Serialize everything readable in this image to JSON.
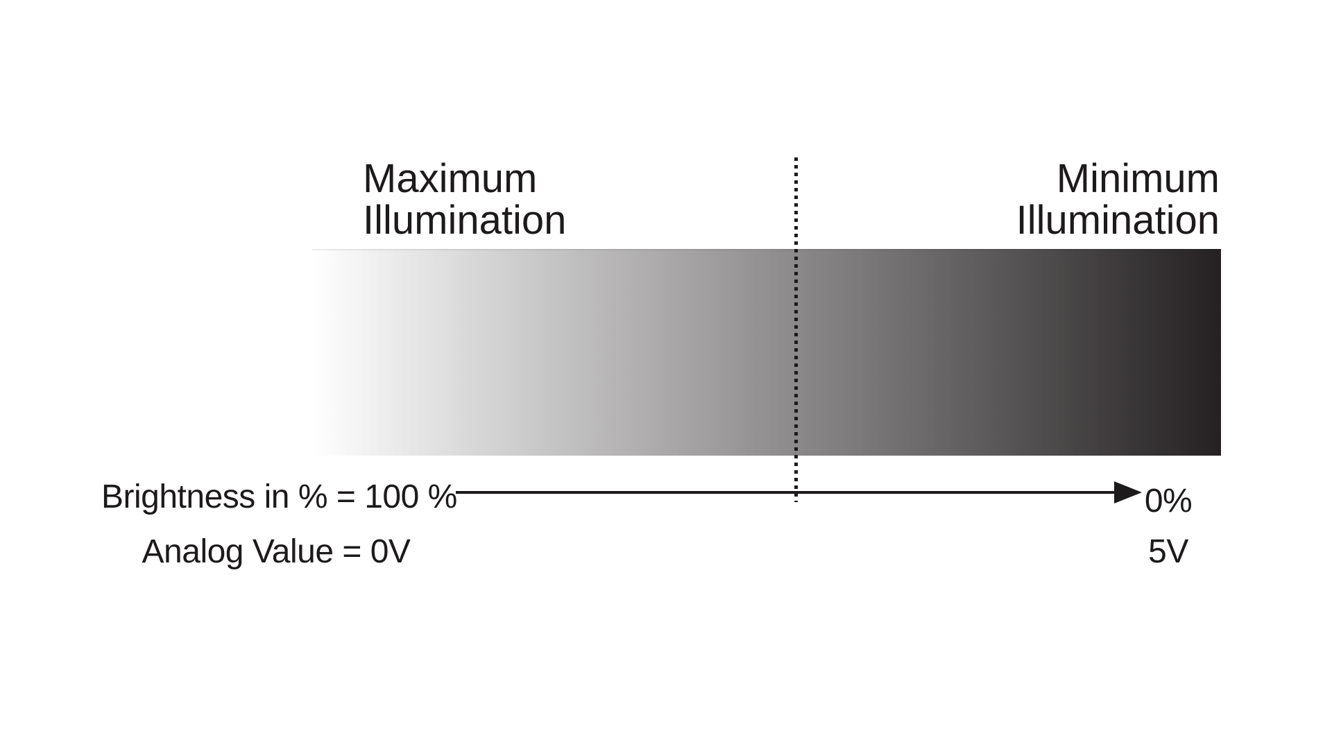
{
  "diagram": {
    "left_heading": {
      "line1": "Maximum",
      "line2": "Illumination"
    },
    "right_heading": {
      "line1": "Minimum",
      "line2": "Illumination"
    },
    "axis": {
      "left_label_line1": "Brightness in % = 100 %",
      "left_label_line2": "Analog Value = 0V",
      "right_label_line1": "0%",
      "right_label_line2": "5V"
    },
    "colors": {
      "gradient_start": "#ffffff",
      "gradient_end": "#252122",
      "ink": "#1d1a1b"
    }
  }
}
